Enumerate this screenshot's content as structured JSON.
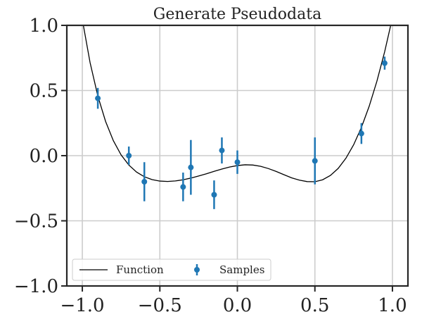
{
  "chart_data": {
    "type": "scatter",
    "title": "Generate Pseudodata",
    "xlabel": "",
    "ylabel": "",
    "xlim": [
      -1.1,
      1.1
    ],
    "ylim": [
      -1.0,
      1.0
    ],
    "x_ticks": [
      -1.0,
      -0.5,
      0.0,
      0.5,
      1.0
    ],
    "x_tick_labels": [
      "−1.0",
      "−0.5",
      "0.0",
      "0.5",
      "1.0"
    ],
    "y_ticks": [
      -1.0,
      -0.5,
      0.0,
      0.5,
      1.0
    ],
    "y_tick_labels": [
      "−1.0",
      "−0.5",
      "0.0",
      "0.5",
      "1.0"
    ],
    "grid": true,
    "legend": {
      "placement": "lower-left",
      "entries": [
        "Function",
        "Samples"
      ]
    },
    "series": [
      {
        "name": "Function",
        "kind": "line",
        "color": "#000000",
        "x": [
          -1.0,
          -0.95,
          -0.9,
          -0.85,
          -0.8,
          -0.75,
          -0.7,
          -0.65,
          -0.6,
          -0.55,
          -0.5,
          -0.45,
          -0.4,
          -0.35,
          -0.3,
          -0.25,
          -0.2,
          -0.15,
          -0.1,
          -0.05,
          0.0,
          0.05,
          0.1,
          0.15,
          0.2,
          0.25,
          0.3,
          0.35,
          0.4,
          0.45,
          0.5,
          0.55,
          0.6,
          0.65,
          0.7,
          0.75,
          0.8,
          0.85,
          0.9,
          0.95,
          1.0
        ],
        "y": [
          1.044,
          0.714,
          0.458,
          0.263,
          0.115,
          0.006,
          -0.072,
          -0.126,
          -0.162,
          -0.184,
          -0.195,
          -0.198,
          -0.194,
          -0.185,
          -0.172,
          -0.156,
          -0.139,
          -0.12,
          -0.103,
          -0.087,
          -0.076,
          -0.07,
          -0.072,
          -0.082,
          -0.099,
          -0.121,
          -0.146,
          -0.17,
          -0.188,
          -0.199,
          -0.2,
          -0.185,
          -0.152,
          -0.098,
          -0.02,
          0.084,
          0.217,
          0.379,
          0.572,
          0.798,
          1.058
        ]
      },
      {
        "name": "Samples",
        "kind": "errorbar",
        "color": "#1f77b4",
        "x": [
          -0.9,
          -0.7,
          -0.6,
          -0.35,
          -0.3,
          -0.15,
          -0.1,
          0.0,
          0.5,
          0.8,
          0.95
        ],
        "y": [
          0.44,
          0.0,
          -0.2,
          -0.24,
          -0.09,
          -0.3,
          0.04,
          -0.05,
          -0.04,
          0.17,
          0.71
        ],
        "yerr": [
          0.08,
          0.07,
          0.15,
          0.11,
          0.21,
          0.11,
          0.1,
          0.09,
          0.18,
          0.08,
          0.05
        ]
      }
    ]
  }
}
